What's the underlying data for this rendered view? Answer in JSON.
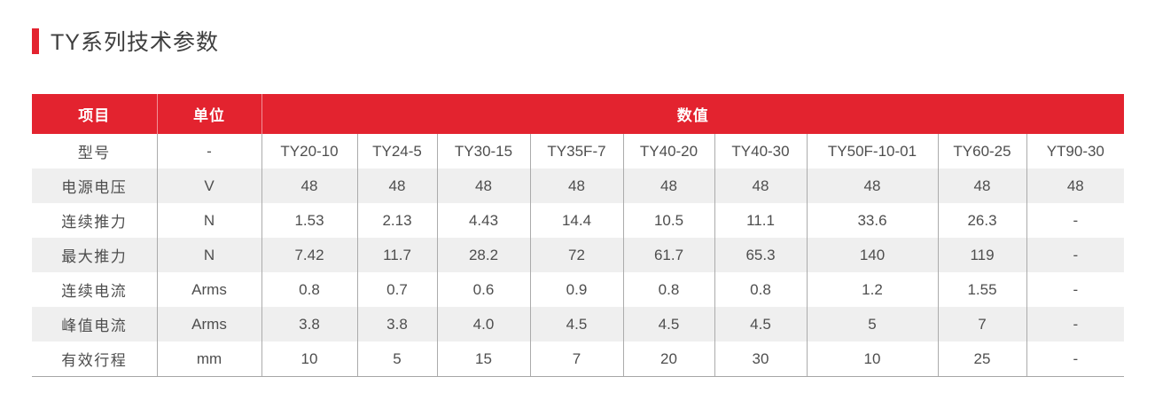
{
  "page": {
    "title": "TY系列技术参数",
    "accent_color": "#E3232F",
    "stripe_color": "#EFEFEF"
  },
  "table": {
    "headers": {
      "item": "项目",
      "unit": "单位",
      "values": "数值"
    },
    "rows": [
      {
        "item": "型号",
        "unit": "-",
        "values": [
          "TY20-10",
          "TY24-5",
          "TY30-15",
          "TY35F-7",
          "TY40-20",
          "TY40-30",
          "TY50F-10-01",
          "TY60-25",
          "YT90-30"
        ]
      },
      {
        "item": "电源电压",
        "unit": "V",
        "values": [
          "48",
          "48",
          "48",
          "48",
          "48",
          "48",
          "48",
          "48",
          "48"
        ]
      },
      {
        "item": "连续推力",
        "unit": "N",
        "values": [
          "1.53",
          "2.13",
          "4.43",
          "14.4",
          "10.5",
          "11.1",
          "33.6",
          "26.3",
          "-"
        ]
      },
      {
        "item": "最大推力",
        "unit": "N",
        "values": [
          "7.42",
          "11.7",
          "28.2",
          "72",
          "61.7",
          "65.3",
          "140",
          "119",
          "-"
        ]
      },
      {
        "item": "连续电流",
        "unit": "Arms",
        "values": [
          "0.8",
          "0.7",
          "0.6",
          "0.9",
          "0.8",
          "0.8",
          "1.2",
          "1.55",
          "-"
        ]
      },
      {
        "item": "峰值电流",
        "unit": "Arms",
        "values": [
          "3.8",
          "3.8",
          "4.0",
          "4.5",
          "4.5",
          "4.5",
          "5",
          "7",
          "-"
        ]
      },
      {
        "item": "有效行程",
        "unit": "mm",
        "values": [
          "10",
          "5",
          "15",
          "7",
          "20",
          "30",
          "10",
          "25",
          "-"
        ]
      }
    ]
  }
}
